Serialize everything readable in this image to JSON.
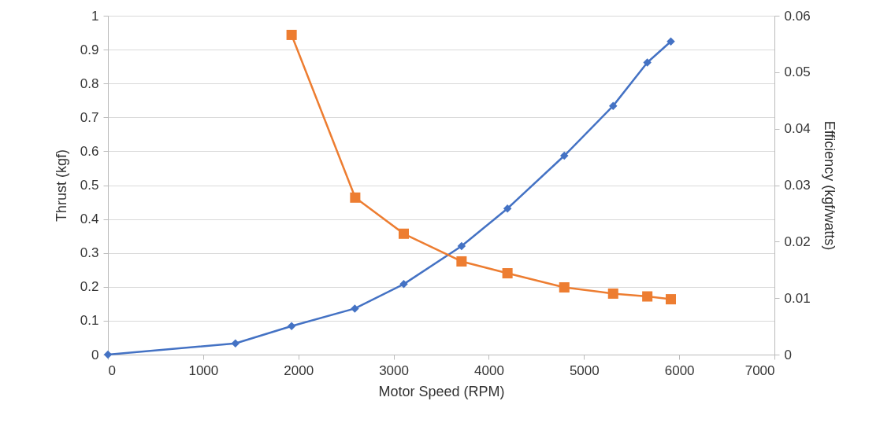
{
  "chart_data": {
    "type": "line",
    "xlabel": "Motor Speed (RPM)",
    "ylabel": "Thrust (kgf)",
    "y2label": "Efficiency (kgf/watts)",
    "xlim": [
      0,
      7000
    ],
    "xticks": [
      0,
      1000,
      2000,
      3000,
      4000,
      5000,
      6000,
      7000
    ],
    "ylim": [
      0,
      1
    ],
    "yticks": [
      0,
      0.1,
      0.2,
      0.3,
      0.4,
      0.5,
      0.6,
      0.7,
      0.8,
      0.9,
      1
    ],
    "y2lim": [
      0,
      0.06
    ],
    "y2ticks": [
      0,
      0.01,
      0.02,
      0.03,
      0.04,
      0.05,
      0.06
    ],
    "grid": "y",
    "line_style": "solid",
    "series": [
      {
        "color": "#4472c4",
        "marker": "diamond",
        "x": [
          0,
          1339,
          1929,
          2593,
          3107,
          3714,
          4196,
          4793,
          5306,
          5665,
          5912
        ],
        "values": [
          0,
          0.033,
          0.084,
          0.136,
          0.208,
          0.32,
          0.431,
          0.587,
          0.734,
          0.862,
          0.924
        ]
      },
      {
        "color": "#ed7d31",
        "marker": "square",
        "axis": "y2",
        "x": [
          1929,
          2597,
          3107,
          3714,
          4196,
          4793,
          5306,
          5665,
          5912
        ],
        "values": [
          0.0566,
          0.0278,
          0.0214,
          0.0165,
          0.0144,
          0.0119,
          0.0108,
          0.0103,
          0.0098
        ]
      }
    ]
  }
}
